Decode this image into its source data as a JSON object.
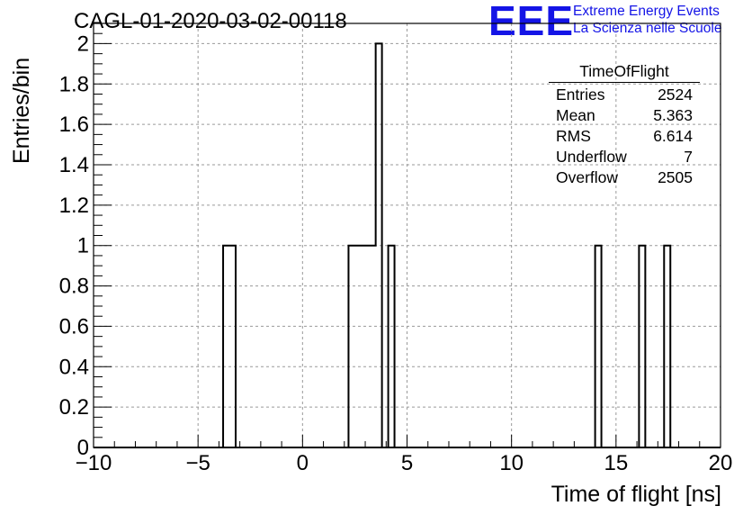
{
  "title": "CAGL-01-2020-03-02-00118",
  "logo": {
    "mark": "EEE",
    "line1": "Extreme Energy Events",
    "line2": "La Scienza nelle Scuole",
    "color": "#1414e6"
  },
  "stats": {
    "title": "TimeOfFlight",
    "rows": [
      {
        "label": "Entries",
        "value": "2524"
      },
      {
        "label": "Mean",
        "value": "5.363"
      },
      {
        "label": "RMS",
        "value": "6.614"
      },
      {
        "label": "Underflow",
        "value": "7"
      },
      {
        "label": "Overflow",
        "value": "2505"
      }
    ]
  },
  "chart_data": {
    "type": "bar",
    "title": "CAGL-01-2020-03-02-00118",
    "xlabel": "Time of flight [ns]",
    "ylabel": "Entries/bin",
    "xlim": [
      -10,
      20
    ],
    "ylim": [
      0,
      2.1
    ],
    "grid": true,
    "xticks": [
      "−10",
      "−5",
      "0",
      "5",
      "10",
      "15",
      "20"
    ],
    "yticks": [
      "0",
      "0.2",
      "0.4",
      "0.6",
      "0.8",
      "1",
      "1.2",
      "1.4",
      "1.6",
      "1.8",
      "2"
    ],
    "bins": [
      {
        "x0": -3.8,
        "x1": -3.2,
        "value": 1
      },
      {
        "x0": 2.2,
        "x1": 3.5,
        "value": 1
      },
      {
        "x0": 3.5,
        "x1": 3.8,
        "value": 2
      },
      {
        "x0": 4.1,
        "x1": 4.4,
        "value": 1
      },
      {
        "x0": 14.0,
        "x1": 14.3,
        "value": 1
      },
      {
        "x0": 16.1,
        "x1": 16.4,
        "value": 1
      },
      {
        "x0": 17.3,
        "x1": 17.6,
        "value": 1
      }
    ]
  }
}
